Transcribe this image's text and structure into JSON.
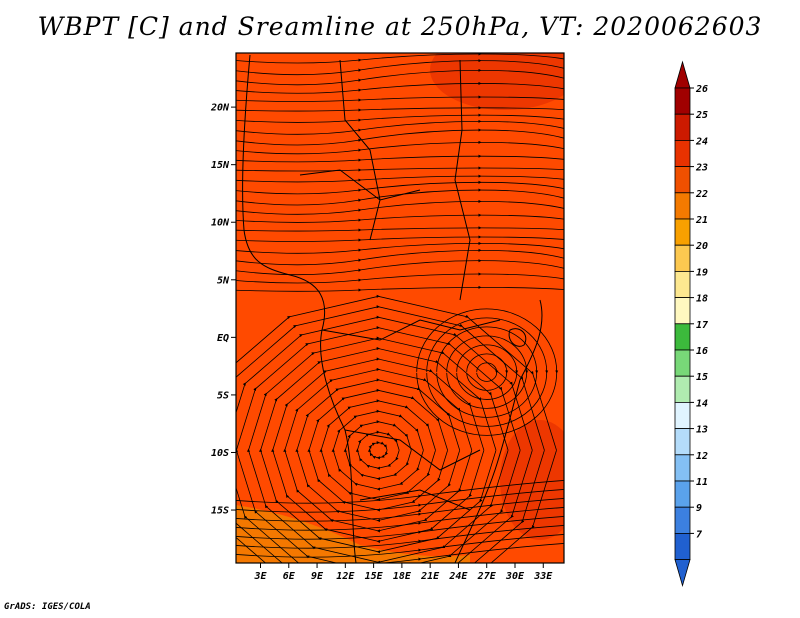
{
  "title": "WBPT [C] and Sreamline at 250hPa, VT: 2020062603",
  "credit": "GrADS: IGES/COLA",
  "map": {
    "lat_ticks": [
      "20N",
      "15N",
      "10N",
      "5N",
      "EQ",
      "5S",
      "10S",
      "15S"
    ],
    "lat_values": [
      20,
      15,
      10,
      5,
      0,
      -5,
      -10,
      -15
    ],
    "lon_ticks": [
      "3E",
      "6E",
      "9E",
      "12E",
      "15E",
      "18E",
      "21E",
      "24E",
      "27E",
      "30E",
      "33E"
    ],
    "lon_values": [
      3,
      6,
      9,
      12,
      15,
      18,
      21,
      24,
      27,
      30,
      33
    ],
    "lon_range": [
      0.4,
      35.2
    ],
    "lat_range": [
      -19.6,
      24.7
    ]
  },
  "colorbar": {
    "labels": [
      "26",
      "25",
      "24",
      "23",
      "22",
      "21",
      "20",
      "19",
      "18",
      "17",
      "16",
      "15",
      "14",
      "13",
      "12",
      "11",
      "9",
      "7"
    ],
    "colors": [
      "#a00000",
      "#cc1a00",
      "#e83200",
      "#f05000",
      "#f47a00",
      "#f8a000",
      "#fcc850",
      "#fde890",
      "#fff8c0",
      "#3cba3c",
      "#78d878",
      "#b0ecb0",
      "#e0f4ff",
      "#b4dcfa",
      "#84c0f4",
      "#5aa2ec",
      "#3c80e0",
      "#2060d0"
    ],
    "top_arrow_color": "#a00000",
    "bottom_arrow_color": "#2060d0"
  },
  "field_colors": {
    "dominant": "#ff4a00",
    "warm_core": "#e83200",
    "south_band": "#f47800"
  }
}
